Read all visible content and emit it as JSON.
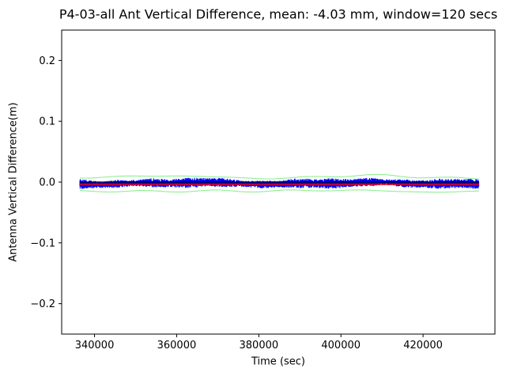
{
  "chart_data": {
    "type": "line",
    "title": "P4-03-all Ant Vertical Difference, mean: -4.03 mm, window=120 secs",
    "xlabel": "Time (sec)",
    "ylabel": "Antenna Vertical Difference(m)",
    "xlim": [
      332000,
      437500
    ],
    "ylim": [
      -0.25,
      0.25
    ],
    "x_ticks": [
      340000,
      360000,
      380000,
      400000,
      420000
    ],
    "y_ticks": [
      0.2,
      0.1,
      0.0,
      -0.1,
      -0.2
    ],
    "grid": false,
    "legend": null,
    "background": "#ffffff",
    "axis_color": "#000000",
    "mean_mm": -4.03,
    "window_secs": 120,
    "x_range_data": [
      336400,
      433600
    ],
    "series": [
      {
        "name": "antenna-vertical-difference",
        "type": "noise_band",
        "color": "#0000ff",
        "center": -0.002,
        "half_width": 0.0068,
        "points": 2500
      },
      {
        "name": "upper-envelope",
        "type": "envelope",
        "color": "#90ee90",
        "offset": 0.0105,
        "side": 1
      },
      {
        "name": "lower-envelope",
        "type": "envelope",
        "color": "#90ee90",
        "offset": -0.0125,
        "side": -1
      },
      {
        "name": "zero-line",
        "type": "hline",
        "color": "#000000",
        "value": 0.0,
        "width": 1.2
      },
      {
        "name": "mean-line",
        "type": "hline",
        "color": "#ff0000",
        "value": -0.00403,
        "width": 1.4
      }
    ]
  }
}
